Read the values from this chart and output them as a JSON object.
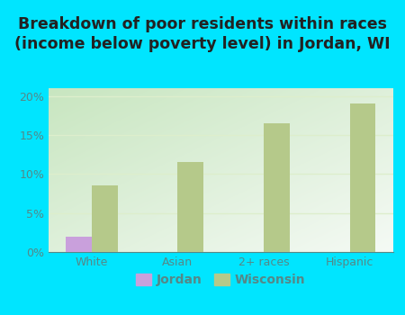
{
  "categories": [
    "White",
    "Asian",
    "2+ races",
    "Hispanic"
  ],
  "jordan_values": [
    2.0,
    0,
    0,
    0
  ],
  "wisconsin_values": [
    8.5,
    11.5,
    16.5,
    19.0
  ],
  "jordan_color": "#c9a0dc",
  "wisconsin_color": "#b5c98a",
  "title_line1": "Breakdown of poor residents within races",
  "title_line2": "(income below poverty level) in Jordan, WI",
  "ylim": [
    0,
    21
  ],
  "yticks": [
    0,
    5,
    10,
    15,
    20
  ],
  "ytick_labels": [
    "0%",
    "5%",
    "10%",
    "15%",
    "20%"
  ],
  "background_color": "#00e5ff",
  "plot_bg_left": "#c8e6c0",
  "plot_bg_right": "#edfaed",
  "title_fontsize": 12.5,
  "bar_width": 0.3,
  "legend_jordan": "Jordan",
  "legend_wisconsin": "Wisconsin",
  "tick_color": "#558888",
  "title_color": "#222222",
  "grid_color": "#ddeecc"
}
